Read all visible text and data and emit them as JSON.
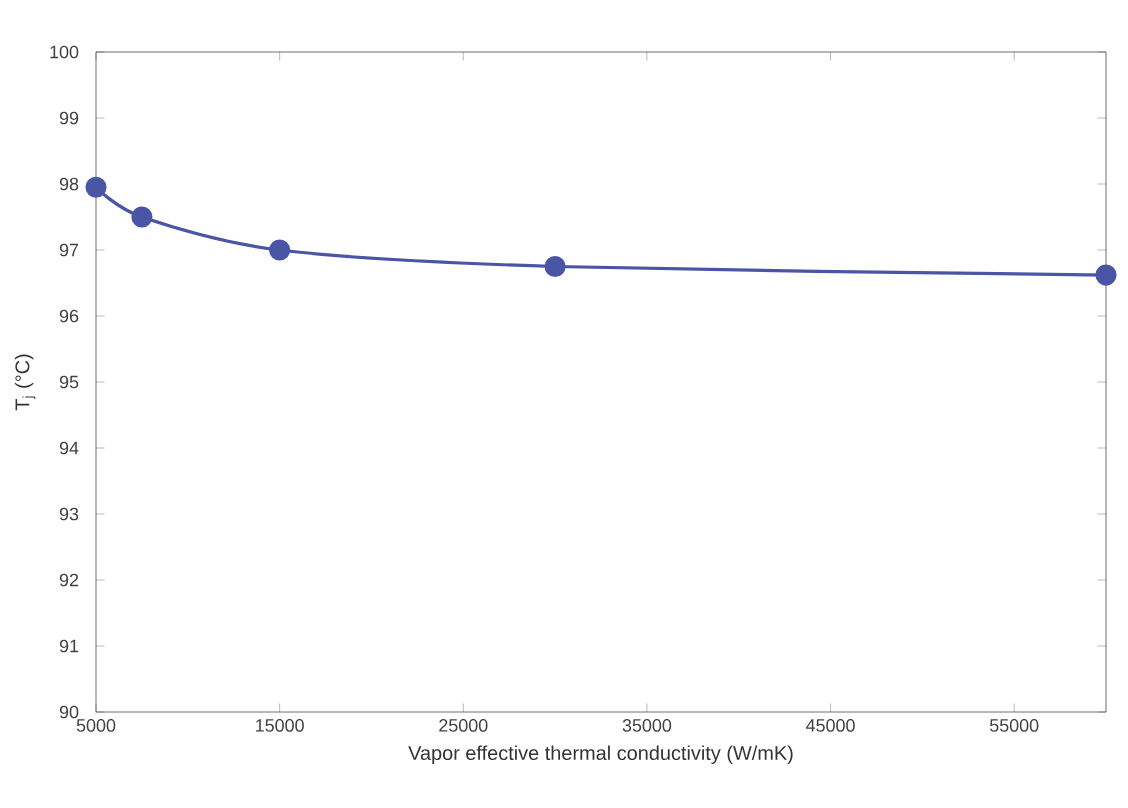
{
  "chart_data": {
    "type": "line",
    "xlabel": "Vapor effective thermal conductivity (W/mK)",
    "ylabel": "T$_{j}$ (°C)",
    "x": [
      5000,
      7500,
      15000,
      30000,
      60000
    ],
    "series": [
      {
        "color": "#4a55a6",
        "values": [
          97.95,
          97.5,
          97.0,
          96.75,
          96.62
        ]
      }
    ],
    "xlim": [
      5000,
      60000
    ],
    "xticks": [
      5000,
      15000,
      25000,
      35000,
      45000,
      55000
    ],
    "ylim": [
      90,
      100
    ],
    "yticks": [
      90,
      91,
      92,
      93,
      94,
      95,
      96,
      97,
      98,
      99,
      100
    ],
    "grid": false,
    "marker": "circle",
    "line_style": "solid"
  }
}
